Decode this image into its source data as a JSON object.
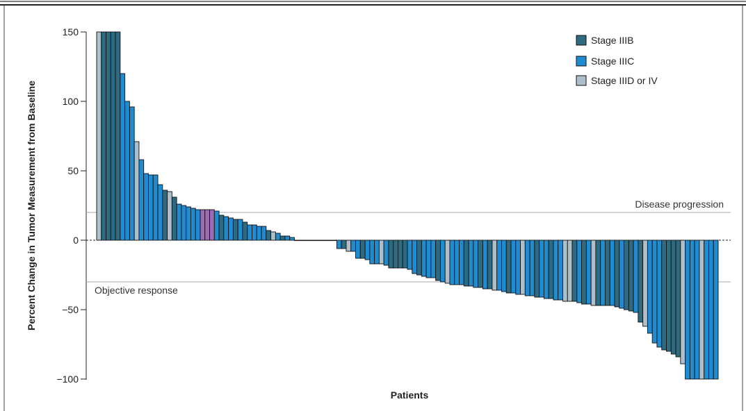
{
  "chart_data": {
    "type": "bar",
    "xlabel": "Patients",
    "ylabel": "Percent Change in Tumor Measurement from Baseline",
    "ylim": [
      -100,
      150
    ],
    "yticks": [
      {
        "value": 150,
        "label": "150"
      },
      {
        "value": 100,
        "label": "100"
      },
      {
        "value": 50,
        "label": "50"
      },
      {
        "value": 0,
        "label": "0"
      },
      {
        "value": -50,
        "label": "−50"
      },
      {
        "value": -100,
        "label": "−100"
      }
    ],
    "legend_position": "top-right",
    "legend": [
      {
        "key": "IIIB",
        "label": "Stage IIIB"
      },
      {
        "key": "IIIC",
        "label": "Stage IIIC"
      },
      {
        "key": "IIID",
        "label": "Stage IIID or IV"
      }
    ],
    "colors": {
      "IIIB": "#2e6b80",
      "IIIC": "#1f8bd0",
      "IIID": "#aebfcc",
      "highlight": "#9b6bb5",
      "outline": "#111111",
      "reference_line": "#aaaaaa"
    },
    "reference_lines": [
      {
        "value": 20,
        "label": "Disease progression",
        "label_side": "right"
      },
      {
        "value": -30,
        "label": "Objective response",
        "label_side": "left"
      }
    ],
    "bars": [
      {
        "value": 150,
        "stage": "IIID"
      },
      {
        "value": 150,
        "stage": "IIIB"
      },
      {
        "value": 150,
        "stage": "IIIB"
      },
      {
        "value": 150,
        "stage": "IIIB"
      },
      {
        "value": 150,
        "stage": "IIIB"
      },
      {
        "value": 120,
        "stage": "IIIC"
      },
      {
        "value": 100,
        "stage": "IIIC"
      },
      {
        "value": 96,
        "stage": "IIIC"
      },
      {
        "value": 71,
        "stage": "IIID"
      },
      {
        "value": 58,
        "stage": "IIIC"
      },
      {
        "value": 48,
        "stage": "IIIC"
      },
      {
        "value": 47,
        "stage": "IIIC"
      },
      {
        "value": 47,
        "stage": "IIIC"
      },
      {
        "value": 40,
        "stage": "IIIC"
      },
      {
        "value": 36,
        "stage": "IIIB"
      },
      {
        "value": 35,
        "stage": "IIID"
      },
      {
        "value": 31,
        "stage": "IIIB"
      },
      {
        "value": 26,
        "stage": "IIIC"
      },
      {
        "value": 25,
        "stage": "IIIC"
      },
      {
        "value": 24,
        "stage": "IIIC"
      },
      {
        "value": 23,
        "stage": "IIIC"
      },
      {
        "value": 22,
        "stage": "IIIC"
      },
      {
        "value": 22,
        "stage": "highlight"
      },
      {
        "value": 22,
        "stage": "highlight"
      },
      {
        "value": 22,
        "stage": "highlight"
      },
      {
        "value": 21,
        "stage": "IIIC"
      },
      {
        "value": 18,
        "stage": "IIIB"
      },
      {
        "value": 17,
        "stage": "IIIC"
      },
      {
        "value": 16,
        "stage": "IIIC"
      },
      {
        "value": 15,
        "stage": "IIIB"
      },
      {
        "value": 15,
        "stage": "IIIC"
      },
      {
        "value": 13,
        "stage": "IIIB"
      },
      {
        "value": 11,
        "stage": "IIIC"
      },
      {
        "value": 11,
        "stage": "IIIC"
      },
      {
        "value": 10,
        "stage": "IIIC"
      },
      {
        "value": 10,
        "stage": "IIIC"
      },
      {
        "value": 7,
        "stage": "IIIB"
      },
      {
        "value": 6,
        "stage": "IIID"
      },
      {
        "value": 5,
        "stage": "IIIC"
      },
      {
        "value": 3,
        "stage": "IIIB"
      },
      {
        "value": 3,
        "stage": "IIIC"
      },
      {
        "value": 2,
        "stage": "IIIC"
      },
      {
        "value": 0,
        "stage": "IIIB"
      },
      {
        "value": 0,
        "stage": "IIIB"
      },
      {
        "value": 0,
        "stage": "IIIB"
      },
      {
        "value": 0,
        "stage": "IIIB"
      },
      {
        "value": 0,
        "stage": "IIIB"
      },
      {
        "value": 0,
        "stage": "IIIB"
      },
      {
        "value": 0,
        "stage": "IIIB"
      },
      {
        "value": 0,
        "stage": "IIIB"
      },
      {
        "value": 0,
        "stage": "IIIB"
      },
      {
        "value": -6,
        "stage": "IIIC"
      },
      {
        "value": -6,
        "stage": "IIIB"
      },
      {
        "value": -8,
        "stage": "IIID"
      },
      {
        "value": -8,
        "stage": "IIIC"
      },
      {
        "value": -13,
        "stage": "IIIC"
      },
      {
        "value": -13,
        "stage": "IIIB"
      },
      {
        "value": -14,
        "stage": "IIIC"
      },
      {
        "value": -17,
        "stage": "IIIC"
      },
      {
        "value": -17,
        "stage": "IIIC"
      },
      {
        "value": -17,
        "stage": "IIID"
      },
      {
        "value": -18,
        "stage": "IIIC"
      },
      {
        "value": -20,
        "stage": "IIIB"
      },
      {
        "value": -20,
        "stage": "IIIB"
      },
      {
        "value": -20,
        "stage": "IIIB"
      },
      {
        "value": -20,
        "stage": "IIIB"
      },
      {
        "value": -21,
        "stage": "IIIC"
      },
      {
        "value": -24,
        "stage": "IIIC"
      },
      {
        "value": -25,
        "stage": "IIIB"
      },
      {
        "value": -26,
        "stage": "IIIC"
      },
      {
        "value": -27,
        "stage": "IIIC"
      },
      {
        "value": -27,
        "stage": "IIIC"
      },
      {
        "value": -29,
        "stage": "IIIB"
      },
      {
        "value": -30,
        "stage": "IIIC"
      },
      {
        "value": -31,
        "stage": "IIID"
      },
      {
        "value": -32,
        "stage": "IIIC"
      },
      {
        "value": -32,
        "stage": "IIIC"
      },
      {
        "value": -32,
        "stage": "IIIC"
      },
      {
        "value": -33,
        "stage": "IIIB"
      },
      {
        "value": -33,
        "stage": "IIIC"
      },
      {
        "value": -34,
        "stage": "IIIC"
      },
      {
        "value": -34,
        "stage": "IIIB"
      },
      {
        "value": -35,
        "stage": "IIIC"
      },
      {
        "value": -35,
        "stage": "IIIB"
      },
      {
        "value": -36,
        "stage": "IIID"
      },
      {
        "value": -36,
        "stage": "IIIC"
      },
      {
        "value": -37,
        "stage": "IIIC"
      },
      {
        "value": -38,
        "stage": "IIIB"
      },
      {
        "value": -38,
        "stage": "IIIC"
      },
      {
        "value": -39,
        "stage": "IIIC"
      },
      {
        "value": -39,
        "stage": "IIID"
      },
      {
        "value": -40,
        "stage": "IIIC"
      },
      {
        "value": -40,
        "stage": "IIIC"
      },
      {
        "value": -41,
        "stage": "IIIB"
      },
      {
        "value": -41,
        "stage": "IIIC"
      },
      {
        "value": -42,
        "stage": "IIIC"
      },
      {
        "value": -42,
        "stage": "IIIB"
      },
      {
        "value": -43,
        "stage": "IIIC"
      },
      {
        "value": -43,
        "stage": "IIIC"
      },
      {
        "value": -44,
        "stage": "IIID"
      },
      {
        "value": -44,
        "stage": "IIID"
      },
      {
        "value": -44,
        "stage": "IIIB"
      },
      {
        "value": -45,
        "stage": "IIIC"
      },
      {
        "value": -46,
        "stage": "IIIB"
      },
      {
        "value": -46,
        "stage": "IIIC"
      },
      {
        "value": -47,
        "stage": "IIID"
      },
      {
        "value": -47,
        "stage": "IIIB"
      },
      {
        "value": -47,
        "stage": "IIIC"
      },
      {
        "value": -47,
        "stage": "IIIB"
      },
      {
        "value": -47,
        "stage": "IIIC"
      },
      {
        "value": -48,
        "stage": "IIIB"
      },
      {
        "value": -49,
        "stage": "IIIC"
      },
      {
        "value": -50,
        "stage": "IIIB"
      },
      {
        "value": -51,
        "stage": "IIIB"
      },
      {
        "value": -52,
        "stage": "IIIC"
      },
      {
        "value": -59,
        "stage": "IIIB"
      },
      {
        "value": -62,
        "stage": "IIID"
      },
      {
        "value": -67,
        "stage": "IIIC"
      },
      {
        "value": -74,
        "stage": "IIIC"
      },
      {
        "value": -77,
        "stage": "IIIC"
      },
      {
        "value": -79,
        "stage": "IIIB"
      },
      {
        "value": -80,
        "stage": "IIIB"
      },
      {
        "value": -82,
        "stage": "IIIB"
      },
      {
        "value": -84,
        "stage": "IIIB"
      },
      {
        "value": -89,
        "stage": "IIID"
      },
      {
        "value": -100,
        "stage": "IIIC"
      },
      {
        "value": -100,
        "stage": "IIIC"
      },
      {
        "value": -100,
        "stage": "IIIC"
      },
      {
        "value": -100,
        "stage": "IIID"
      },
      {
        "value": -100,
        "stage": "IIIC"
      },
      {
        "value": -100,
        "stage": "IIIC"
      },
      {
        "value": -100,
        "stage": "IIIC"
      }
    ]
  }
}
